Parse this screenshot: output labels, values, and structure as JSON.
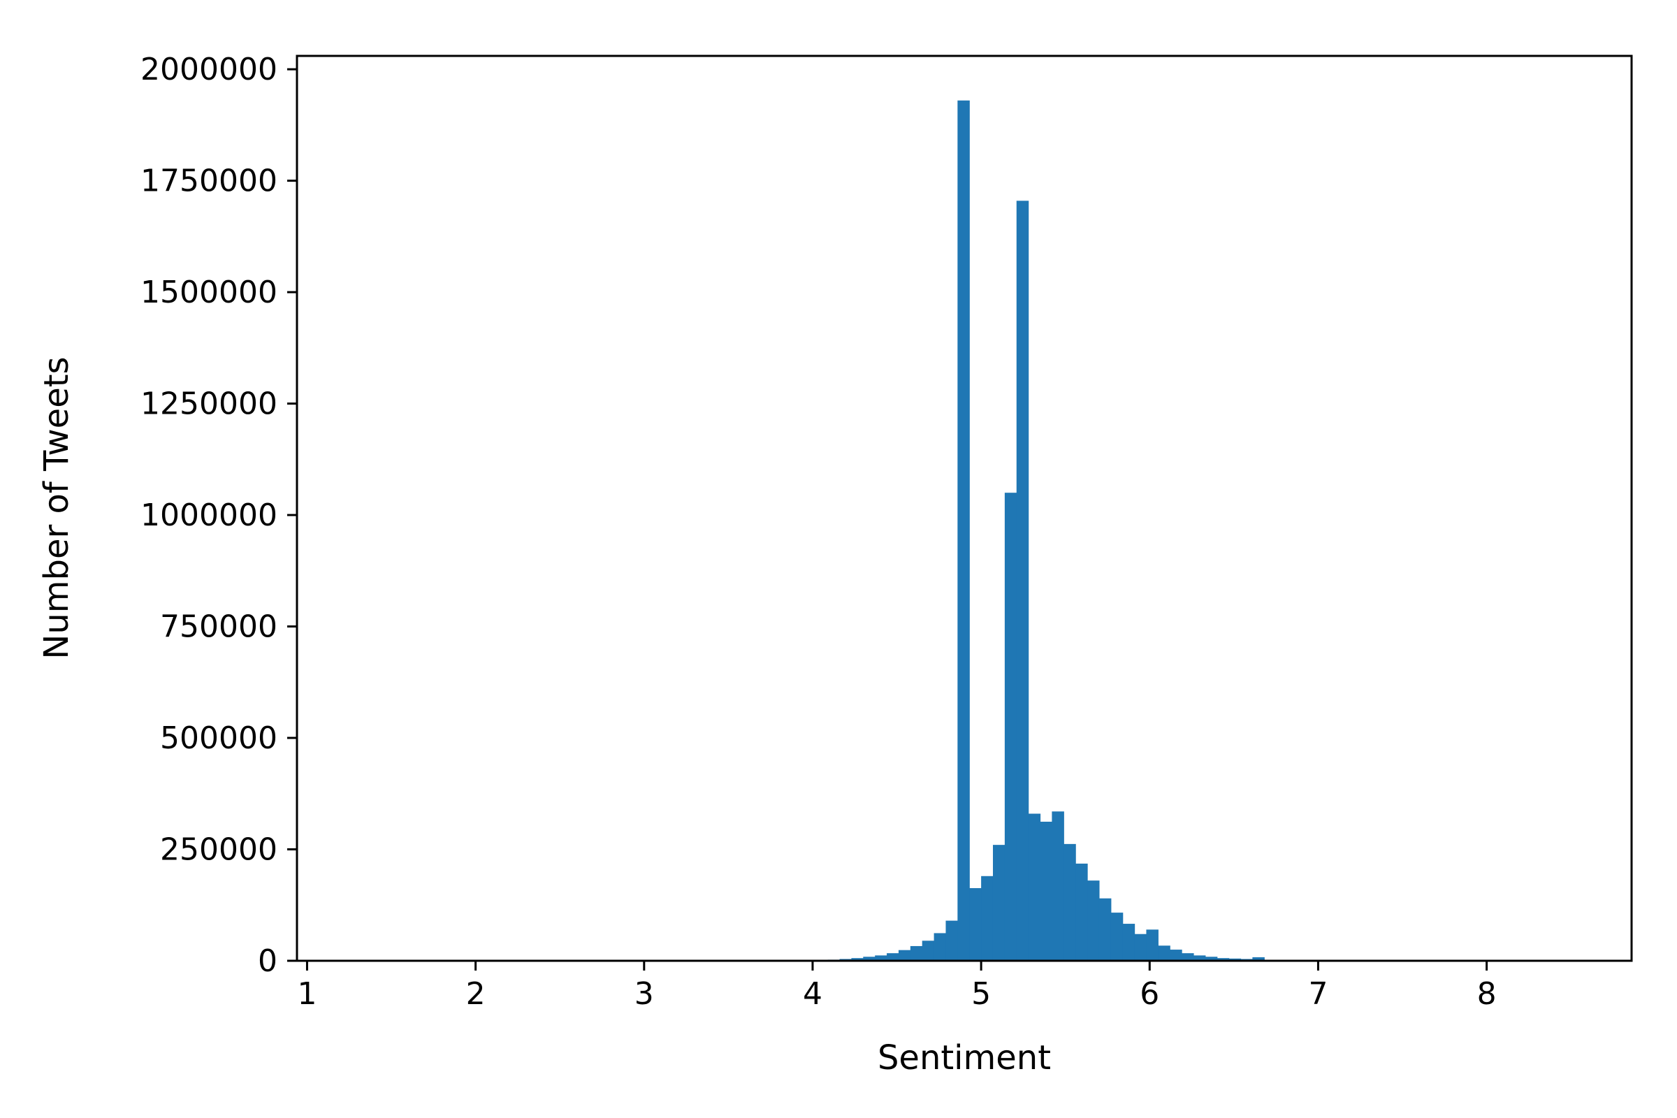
{
  "chart_data": {
    "type": "bar",
    "title": "",
    "xlabel": "Sentiment",
    "ylabel": "Number of Tweets",
    "xlim": [
      0.94,
      8.86
    ],
    "ylim": [
      0,
      2030000
    ],
    "xticks": [
      1,
      2,
      3,
      4,
      5,
      6,
      7,
      8
    ],
    "yticks": [
      0,
      250000,
      500000,
      750000,
      1000000,
      1250000,
      1500000,
      1750000,
      2000000
    ],
    "bar_color": "#1f77b4",
    "grid": false,
    "legend": "none",
    "bin_width": 0.07,
    "bins": [
      {
        "x": 4.02,
        "value": 1500
      },
      {
        "x": 4.09,
        "value": 2500
      },
      {
        "x": 4.16,
        "value": 4000
      },
      {
        "x": 4.23,
        "value": 6000
      },
      {
        "x": 4.3,
        "value": 9000
      },
      {
        "x": 4.37,
        "value": 12000
      },
      {
        "x": 4.44,
        "value": 17000
      },
      {
        "x": 4.51,
        "value": 24000
      },
      {
        "x": 4.58,
        "value": 33000
      },
      {
        "x": 4.65,
        "value": 45000
      },
      {
        "x": 4.72,
        "value": 62000
      },
      {
        "x": 4.79,
        "value": 90000
      },
      {
        "x": 4.86,
        "value": 1930000
      },
      {
        "x": 4.93,
        "value": 163000
      },
      {
        "x": 5.0,
        "value": 190000
      },
      {
        "x": 5.07,
        "value": 260000
      },
      {
        "x": 5.14,
        "value": 1050000
      },
      {
        "x": 5.21,
        "value": 1705000
      },
      {
        "x": 5.28,
        "value": 330000
      },
      {
        "x": 5.35,
        "value": 312000
      },
      {
        "x": 5.42,
        "value": 335000
      },
      {
        "x": 5.49,
        "value": 262000
      },
      {
        "x": 5.56,
        "value": 218000
      },
      {
        "x": 5.63,
        "value": 180000
      },
      {
        "x": 5.7,
        "value": 140000
      },
      {
        "x": 5.77,
        "value": 108000
      },
      {
        "x": 5.84,
        "value": 83000
      },
      {
        "x": 5.91,
        "value": 60000
      },
      {
        "x": 5.98,
        "value": 70000
      },
      {
        "x": 6.05,
        "value": 34000
      },
      {
        "x": 6.12,
        "value": 25000
      },
      {
        "x": 6.19,
        "value": 17000
      },
      {
        "x": 6.26,
        "value": 12000
      },
      {
        "x": 6.33,
        "value": 9000
      },
      {
        "x": 6.4,
        "value": 6000
      },
      {
        "x": 6.47,
        "value": 5000
      },
      {
        "x": 6.54,
        "value": 4000
      },
      {
        "x": 6.61,
        "value": 8000
      },
      {
        "x": 6.68,
        "value": 1500
      },
      {
        "x": 6.75,
        "value": 1000
      }
    ]
  }
}
